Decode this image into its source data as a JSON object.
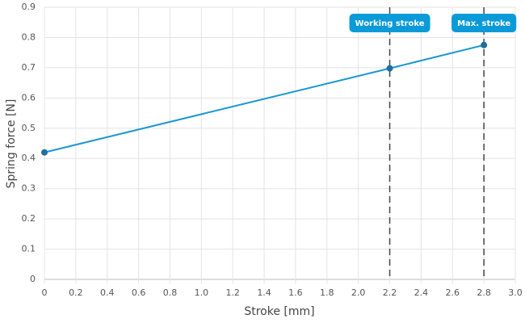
{
  "chart_data": {
    "type": "line",
    "x_label": "Stroke [mm]",
    "y_label": "Spring force [N]",
    "x": [
      0,
      2.2,
      2.8
    ],
    "values": [
      0.42,
      0.698,
      0.775
    ],
    "color": "#1a96d4",
    "marker_color": "#1d6fa0",
    "xlim": [
      0,
      3
    ],
    "ylim": [
      0,
      0.9
    ],
    "xticks": [
      0,
      0.2,
      0.4,
      0.6,
      0.8,
      {
        "value": 1,
        "label": "1.0"
      },
      1.2,
      1.4,
      1.6,
      1.8,
      {
        "value": 2,
        "label": "2.0"
      },
      2.2,
      2.4,
      2.6,
      2.8,
      {
        "value": 3,
        "label": "3.0"
      }
    ],
    "yticks": [
      0,
      0.1,
      0.2,
      0.3,
      0.4,
      0.5,
      0.6,
      0.7,
      0.8,
      0.9
    ],
    "grid": true,
    "annotations": [
      {
        "x": 2.2,
        "label": "Working stroke"
      },
      {
        "x": 2.8,
        "label": "Max. stroke"
      }
    ],
    "annotation_color": "#0a9ad8"
  }
}
